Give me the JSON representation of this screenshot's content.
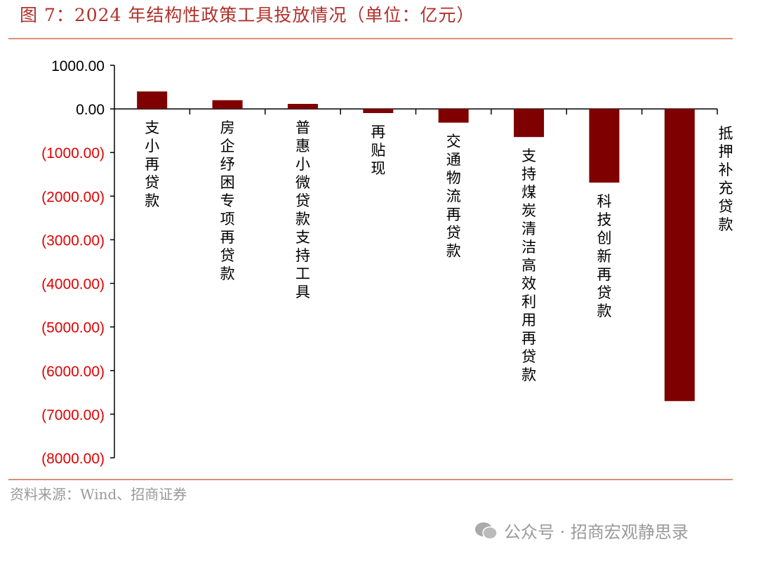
{
  "title": "图 7：2024 年结构性政策工具投放情况（单位：亿元）",
  "source": "资料来源：Wind、招商证券",
  "watermark": "公众号 · 招商宏观静思录",
  "colors": {
    "bar": "#7f0000",
    "negative_tick": "#e00000",
    "title": "#b0302a",
    "rule": "#d9917a"
  },
  "chart_data": {
    "type": "bar",
    "title": "图 7：2024 年结构性政策工具投放情况（单位：亿元）",
    "categories": [
      "支小再贷款",
      "房企纾困专项再贷款",
      "普惠小微贷款支持工具",
      "再贴现",
      "交通物流再贷款",
      "支持煤炭清洁高效利用再贷款",
      "科技创新再贷款",
      "抵押补充贷款"
    ],
    "values": [
      400,
      200,
      115,
      -95,
      -315,
      -645,
      -1690,
      -6700
    ],
    "ylim": [
      -8000,
      1000
    ],
    "yticks": [
      1000,
      0,
      -1000,
      -2000,
      -3000,
      -4000,
      -5000,
      -6000,
      -7000,
      -8000
    ],
    "ytick_labels": [
      "1000.00",
      "0.00",
      "(1000.00)",
      "(2000.00)",
      "(3000.00)",
      "(4000.00)",
      "(5000.00)",
      "(6000.00)",
      "(7000.00)",
      "(8000.00)"
    ],
    "grid": false,
    "legend": "none"
  }
}
